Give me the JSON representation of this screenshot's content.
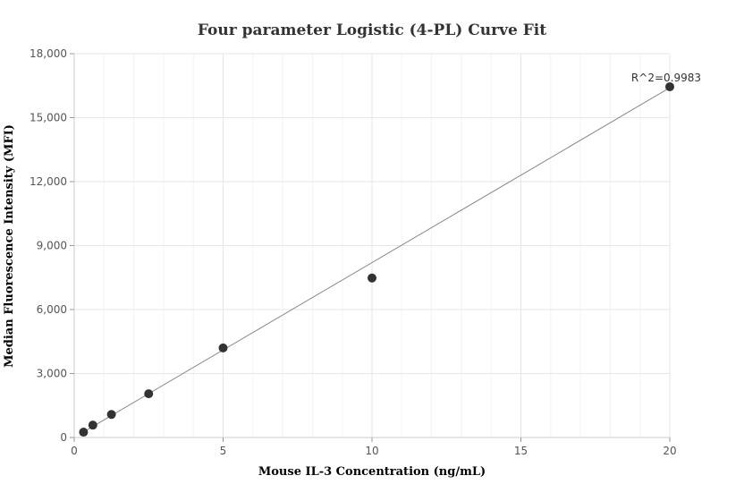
{
  "chart_data": {
    "type": "scatter",
    "title": "Four parameter Logistic (4-PL) Curve Fit",
    "xlabel": "Mouse IL-3 Concentration (ng/mL)",
    "ylabel": "Median Fluorescence Intensity (MFI)",
    "xlim": [
      0,
      20
    ],
    "ylim": [
      0,
      18000
    ],
    "x_ticks": [
      0,
      5,
      10,
      15,
      20
    ],
    "x_tick_labels": [
      "0",
      "5",
      "10",
      "15",
      "20"
    ],
    "y_ticks": [
      0,
      3000,
      6000,
      9000,
      12000,
      15000,
      18000
    ],
    "y_tick_labels": [
      "0",
      "3,000",
      "6,000",
      "9,000",
      "12,000",
      "15,000",
      "18,000"
    ],
    "grid": true,
    "series": [
      {
        "x": [
          0.3125,
          0.625,
          1.25,
          2.5,
          5,
          10,
          20
        ],
        "y": [
          250,
          580,
          1080,
          2050,
          4200,
          7480,
          16450
        ]
      }
    ],
    "fit_curve": {
      "x": [
        0.3125,
        20
      ],
      "y": [
        260,
        16400
      ]
    },
    "annotation": "R^2=0.9983",
    "colors": {
      "points": "#333333",
      "curve": "#888888",
      "grid": "#e6e6e6",
      "axis": "#cccccc"
    }
  }
}
